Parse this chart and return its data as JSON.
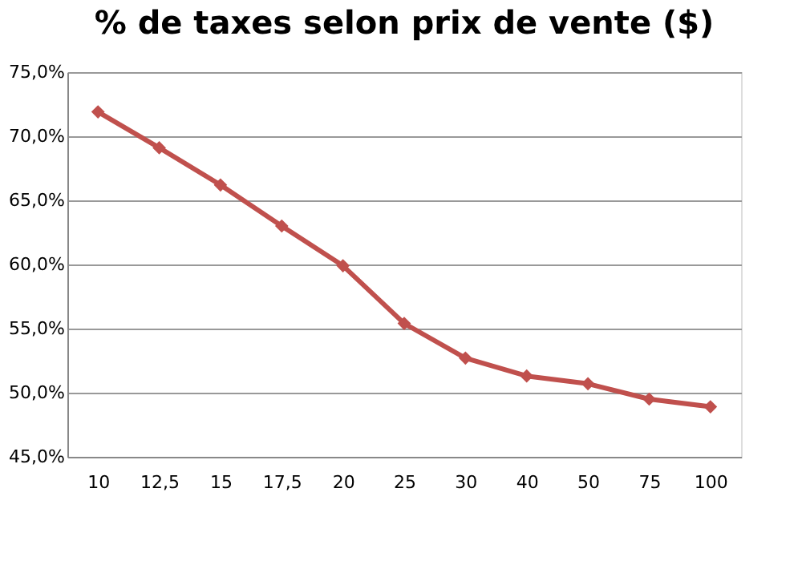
{
  "chart_data": {
    "type": "line",
    "title": "% de taxes selon prix de vente ($)",
    "categories": [
      "10",
      "12,5",
      "15",
      "17,5",
      "20",
      "25",
      "30",
      "40",
      "50",
      "75",
      "100"
    ],
    "series": [
      {
        "color": "#c0504d",
        "values": [
          71.9,
          69.1,
          66.2,
          63.0,
          59.9,
          55.4,
          52.7,
          51.3,
          50.7,
          49.5,
          48.9
        ]
      }
    ],
    "ylim": [
      45,
      75
    ],
    "yticks": [
      {
        "value": 45,
        "label": "45,0%"
      },
      {
        "value": 50,
        "label": "50,0%"
      },
      {
        "value": 55,
        "label": "55,0%"
      },
      {
        "value": 60,
        "label": "60,0%"
      },
      {
        "value": 65,
        "label": "65,0%"
      },
      {
        "value": 70,
        "label": "70,0%"
      },
      {
        "value": 75,
        "label": "75,0%"
      }
    ],
    "grid": "y",
    "legend": false,
    "marker": "diamond",
    "line_style": "solid"
  }
}
